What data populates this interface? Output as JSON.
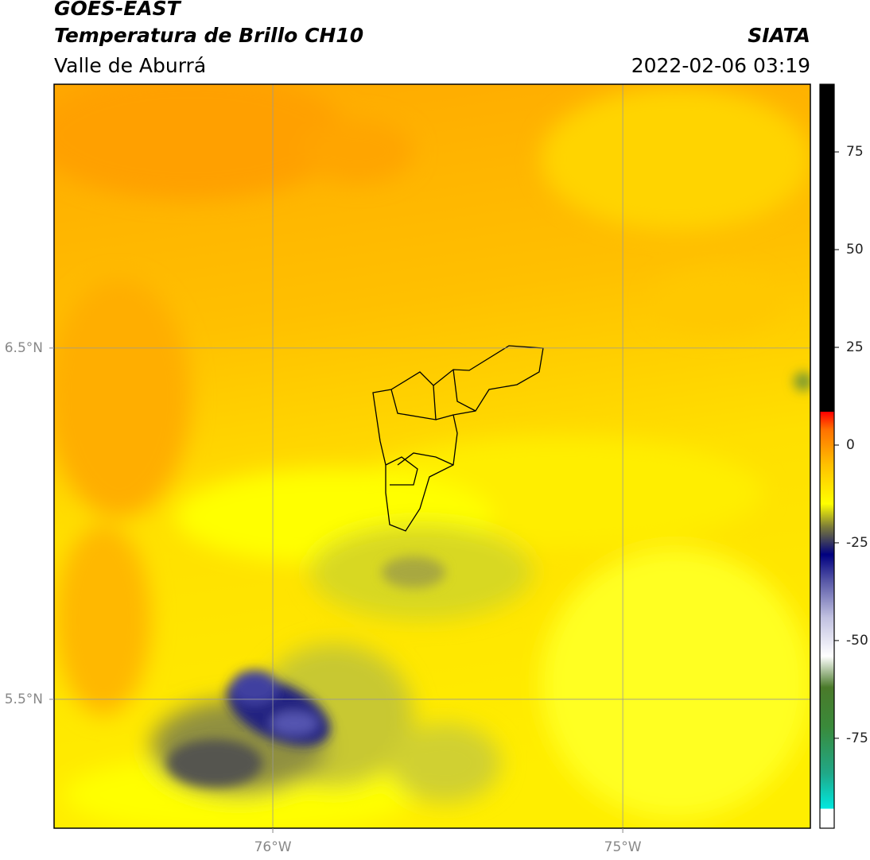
{
  "header": {
    "title": "GOES-EAST",
    "subtitle": "Temperatura de Brillo CH10",
    "region": "Valle de Aburrá",
    "source": "SIATA",
    "datetime": "2022-02-06 03:19"
  },
  "map": {
    "xlim": [
      -76.625,
      -74.464
    ],
    "ylim": [
      5.133,
      7.251
    ],
    "xticks": [
      {
        "value": -76,
        "label": "76°W"
      },
      {
        "value": -75,
        "label": "75°W"
      }
    ],
    "yticks": [
      {
        "value": 6.5,
        "label": "6.5°N"
      },
      {
        "value": 5.5,
        "label": "5.5°N"
      }
    ],
    "grid": true
  },
  "colorbar": {
    "lim": [
      -98,
      92.3
    ],
    "ticks": [
      75,
      50,
      25,
      0,
      -25,
      -50,
      -75
    ],
    "stops": [
      {
        "value": -98,
        "color": "#ffffff"
      },
      {
        "value": -93,
        "color": "#ffffff"
      },
      {
        "value": -93,
        "color": "#00e8e0"
      },
      {
        "value": -84,
        "color": "#20a888"
      },
      {
        "value": -72,
        "color": "#3a8a3a"
      },
      {
        "value": -62,
        "color": "#4a7a2a"
      },
      {
        "value": -54,
        "color": "#ffffff"
      },
      {
        "value": -44,
        "color": "#c0c0e0"
      },
      {
        "value": -35,
        "color": "#5a5aa8"
      },
      {
        "value": -28,
        "color": "#000080"
      },
      {
        "value": -21,
        "color": "#7a7a3a"
      },
      {
        "value": -15,
        "color": "#ffff00"
      },
      {
        "value": -5,
        "color": "#ffc000"
      },
      {
        "value": 4,
        "color": "#ff7000"
      },
      {
        "value": 8.5,
        "color": "#ff0000"
      },
      {
        "value": 8.5,
        "color": "#000000"
      },
      {
        "value": 92.3,
        "color": "#000000"
      }
    ]
  }
}
